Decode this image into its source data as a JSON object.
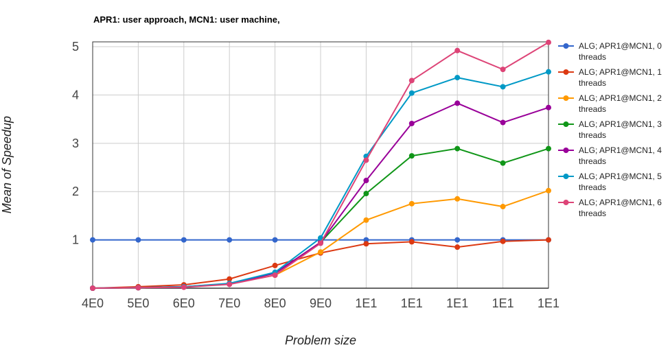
{
  "chart_data": {
    "type": "line",
    "title": "APR1: user approach, MCN1: user machine,",
    "xlabel": "Problem size",
    "ylabel": "Mean of Speedup",
    "categories": [
      "4E0",
      "5E0",
      "6E0",
      "7E0",
      "8E0",
      "9E0",
      "1E1",
      "1E1",
      "1E1",
      "1E1",
      "1E1"
    ],
    "y_ticks": [
      "1",
      "2",
      "3",
      "4",
      "5"
    ],
    "ylim": [
      0,
      5.1
    ],
    "grid": true,
    "legend_position": "right",
    "series": [
      {
        "name_line1": "ALG; APR1@MCN1, 0",
        "name_line2": "threads",
        "color": "#3366cc",
        "values": [
          1.0,
          1.0,
          1.0,
          1.0,
          1.0,
          1.0,
          1.0,
          1.0,
          1.0,
          1.0,
          1.0
        ]
      },
      {
        "name_line1": "ALG; APR1@MCN1, 1",
        "name_line2": "threads",
        "color": "#dc3912",
        "values": [
          0.0,
          0.03,
          0.07,
          0.19,
          0.47,
          0.73,
          0.92,
          0.96,
          0.85,
          0.97,
          1.0
        ]
      },
      {
        "name_line1": "ALG; APR1@MCN1, 2",
        "name_line2": "threads",
        "color": "#ff9900",
        "values": [
          0.0,
          0.01,
          0.03,
          0.09,
          0.27,
          0.75,
          1.41,
          1.75,
          1.85,
          1.69,
          2.02
        ]
      },
      {
        "name_line1": "ALG; APR1@MCN1, 3",
        "name_line2": "threads",
        "color": "#109618",
        "values": [
          0.0,
          0.01,
          0.03,
          0.09,
          0.31,
          0.95,
          1.96,
          2.74,
          2.89,
          2.59,
          2.89
        ]
      },
      {
        "name_line1": "ALG; APR1@MCN1, 4",
        "name_line2": "threads",
        "color": "#990099",
        "values": [
          0.0,
          0.01,
          0.03,
          0.09,
          0.31,
          0.95,
          2.23,
          3.41,
          3.83,
          3.43,
          3.74
        ]
      },
      {
        "name_line1": "ALG; APR1@MCN1, 5",
        "name_line2": "threads",
        "color": "#0099c6",
        "values": [
          0.0,
          0.01,
          0.03,
          0.1,
          0.33,
          1.04,
          2.73,
          4.04,
          4.36,
          4.17,
          4.48
        ]
      },
      {
        "name_line1": "ALG; APR1@MCN1, 6",
        "name_line2": "threads",
        "color": "#dd4477",
        "values": [
          0.0,
          0.01,
          0.02,
          0.08,
          0.27,
          0.93,
          2.65,
          4.3,
          4.92,
          4.53,
          5.09
        ]
      }
    ]
  }
}
